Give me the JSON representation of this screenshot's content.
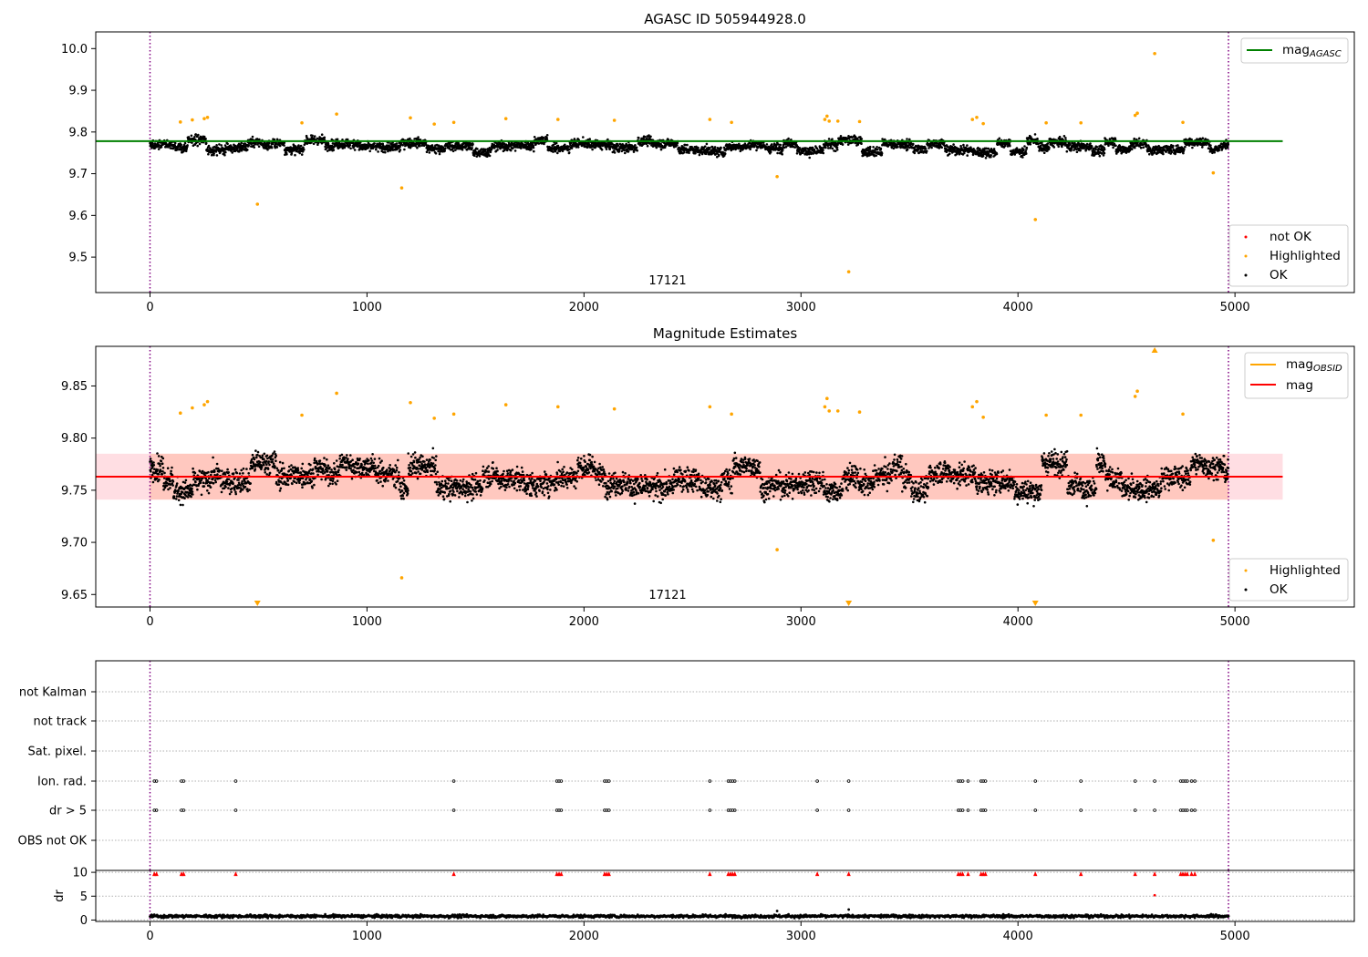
{
  "chart_data": [
    {
      "type": "scatter",
      "title": "AGASC ID 505944928.0",
      "xlim": [
        -250,
        5550
      ],
      "ylim": [
        9.415,
        10.04
      ],
      "xticks": [
        "0",
        "1000",
        "2000",
        "3000",
        "4000",
        "5000"
      ],
      "yticks": [
        "9.5",
        "9.6",
        "9.7",
        "9.8",
        "9.9",
        "10.0"
      ],
      "xtick_values": [
        0,
        1000,
        2000,
        3000,
        4000,
        5000
      ],
      "ytick_values": [
        9.5,
        9.6,
        9.7,
        9.8,
        9.9,
        10.0
      ],
      "obsid_label": "17121",
      "obsid_label_x": 2480,
      "obsid_boundaries": [
        0,
        4970
      ],
      "mag_agasc": 9.778,
      "mag_line_x": [
        -250,
        5220
      ],
      "series_summary": {
        "x_range": [
          0,
          4970
        ],
        "center": 9.765,
        "spread": 0.055
      },
      "highlighted_points": [
        [
          140,
          9.824
        ],
        [
          195,
          9.829
        ],
        [
          250,
          9.832
        ],
        [
          265,
          9.835
        ],
        [
          495,
          9.627
        ],
        [
          700,
          9.822
        ],
        [
          860,
          9.843
        ],
        [
          1160,
          9.666
        ],
        [
          1200,
          9.834
        ],
        [
          1310,
          9.819
        ],
        [
          1400,
          9.823
        ],
        [
          1640,
          9.832
        ],
        [
          1880,
          9.83
        ],
        [
          2140,
          9.828
        ],
        [
          2580,
          9.83
        ],
        [
          2680,
          9.823
        ],
        [
          2890,
          9.693
        ],
        [
          3110,
          9.83
        ],
        [
          3120,
          9.838
        ],
        [
          3130,
          9.826
        ],
        [
          3170,
          9.826
        ],
        [
          3220,
          9.465
        ],
        [
          3270,
          9.825
        ],
        [
          3790,
          9.83
        ],
        [
          3810,
          9.835
        ],
        [
          3840,
          9.82
        ],
        [
          4080,
          9.59
        ],
        [
          4130,
          9.822
        ],
        [
          4290,
          9.822
        ],
        [
          4540,
          9.84
        ],
        [
          4550,
          9.845
        ],
        [
          4630,
          9.988
        ],
        [
          4760,
          9.823
        ],
        [
          4900,
          9.702
        ]
      ],
      "legend_lines": [
        {
          "label": "mag",
          "subscript": "AGASC",
          "color": "#008000"
        }
      ],
      "legend_markers": [
        {
          "label": "not OK",
          "color": "#ff0000"
        },
        {
          "label": "Highlighted",
          "color": "#ffa500"
        },
        {
          "label": "OK",
          "color": "#000000"
        }
      ]
    },
    {
      "type": "scatter",
      "title": "Magnitude Estimates",
      "xlim": [
        -250,
        5550
      ],
      "ylim": [
        9.638,
        9.888
      ],
      "xticks": [
        "0",
        "1000",
        "2000",
        "3000",
        "4000",
        "5000"
      ],
      "yticks": [
        "9.65",
        "9.70",
        "9.75",
        "9.80",
        "9.85"
      ],
      "xtick_values": [
        0,
        1000,
        2000,
        3000,
        4000,
        5000
      ],
      "ytick_values": [
        9.65,
        9.7,
        9.75,
        9.8,
        9.85
      ],
      "obsid_label": "17121",
      "obsid_label_x": 2480,
      "obsid_boundaries": [
        0,
        4970
      ],
      "mag_obsid": 9.763,
      "mag": 9.763,
      "band": [
        9.741,
        9.785
      ],
      "mag_line_x": [
        -250,
        5220
      ],
      "series_summary": {
        "x_range": [
          0,
          4970
        ],
        "center": 9.76,
        "spread": 0.055
      },
      "highlighted_points": [
        [
          140,
          9.824
        ],
        [
          195,
          9.829
        ],
        [
          250,
          9.832
        ],
        [
          265,
          9.835
        ],
        [
          700,
          9.822
        ],
        [
          860,
          9.843
        ],
        [
          1160,
          9.666
        ],
        [
          1200,
          9.834
        ],
        [
          1310,
          9.819
        ],
        [
          1400,
          9.823
        ],
        [
          1640,
          9.832
        ],
        [
          1880,
          9.83
        ],
        [
          2140,
          9.828
        ],
        [
          2580,
          9.83
        ],
        [
          2680,
          9.823
        ],
        [
          2890,
          9.693
        ],
        [
          3110,
          9.83
        ],
        [
          3120,
          9.838
        ],
        [
          3130,
          9.826
        ],
        [
          3170,
          9.826
        ],
        [
          3270,
          9.825
        ],
        [
          3790,
          9.83
        ],
        [
          3810,
          9.835
        ],
        [
          3840,
          9.82
        ],
        [
          4130,
          9.822
        ],
        [
          4290,
          9.822
        ],
        [
          4540,
          9.84
        ],
        [
          4550,
          9.845
        ],
        [
          4760,
          9.823
        ],
        [
          4900,
          9.702
        ]
      ],
      "out_of_range_markers": [
        {
          "x": 495,
          "direction": "down"
        },
        {
          "x": 3220,
          "direction": "down"
        },
        {
          "x": 4080,
          "direction": "down"
        },
        {
          "x": 4630,
          "direction": "up"
        }
      ],
      "legend_lines": [
        {
          "label": "mag",
          "subscript": "OBSID",
          "color": "#ffa500"
        },
        {
          "label": "mag",
          "subscript": "",
          "color": "#ff0000"
        }
      ],
      "legend_markers": [
        {
          "label": "Highlighted",
          "color": "#ffa500"
        },
        {
          "label": "OK",
          "color": "#000000"
        }
      ]
    },
    {
      "type": "scatter",
      "title": "",
      "xlim": [
        -250,
        5550
      ],
      "categories": [
        "not Kalman",
        "not track",
        "Sat. pixel.",
        "Ion. rad.",
        "dr > 5",
        "OBS not OK"
      ],
      "flag_rows": {
        "Ion. rad.": [
          20,
          30,
          145,
          155,
          395,
          1400,
          1875,
          1885,
          1895,
          2095,
          2105,
          2115,
          2580,
          2665,
          2675,
          2685,
          2695,
          3075,
          3220,
          3725,
          3735,
          3745,
          3770,
          3830,
          3840,
          3850,
          4080,
          4290,
          4540,
          4630,
          4750,
          4760,
          4770,
          4780,
          4800,
          4815
        ],
        "dr > 5": [
          20,
          30,
          145,
          155,
          395,
          1400,
          1875,
          1885,
          1895,
          2095,
          2105,
          2115,
          2580,
          2665,
          2675,
          2685,
          2695,
          3075,
          3220,
          3725,
          3735,
          3745,
          3770,
          3830,
          3840,
          3850,
          4080,
          4290,
          4540,
          4630,
          4750,
          4760,
          4770,
          4780,
          4800,
          4815
        ]
      },
      "dr_panel": {
        "ylabel": "dr",
        "ylim": [
          -0.3,
          10.4
        ],
        "yticks": [
          "0",
          "5",
          "10"
        ],
        "ytick_values": [
          0,
          5,
          10
        ],
        "xticks": [
          "0",
          "1000",
          "2000",
          "3000",
          "4000",
          "5000"
        ],
        "xtick_values": [
          0,
          1000,
          2000,
          3000,
          4000,
          5000
        ],
        "dr_capped_points": [
          20,
          30,
          145,
          155,
          395,
          1400,
          1875,
          1885,
          1895,
          2095,
          2105,
          2115,
          2580,
          2665,
          2675,
          2685,
          2695,
          3075,
          3220,
          3725,
          3735,
          3745,
          3770,
          3830,
          3840,
          3850,
          4080,
          4290,
          4540,
          4630,
          4750,
          4760,
          4770,
          4780,
          4800,
          4815
        ],
        "dr_outliers": [
          [
            4630,
            5.2
          ],
          [
            3220,
            2.2
          ],
          [
            2890,
            1.9
          ]
        ],
        "baseline": 0.8
      },
      "obsid_boundaries": [
        0,
        4970
      ]
    }
  ]
}
